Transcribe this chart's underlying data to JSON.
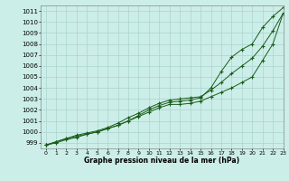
{
  "x": [
    0,
    1,
    2,
    3,
    4,
    5,
    6,
    7,
    8,
    9,
    10,
    11,
    12,
    13,
    14,
    15,
    16,
    17,
    18,
    19,
    20,
    21,
    22,
    23
  ],
  "series1": [
    998.8,
    999.1,
    999.4,
    999.6,
    999.8,
    1000.0,
    1000.3,
    1000.6,
    1001.0,
    1001.4,
    1001.8,
    1002.2,
    1002.5,
    1002.5,
    1002.6,
    1002.8,
    1003.2,
    1003.6,
    1004.0,
    1004.5,
    1005.0,
    1006.5,
    1008.0,
    1010.8
  ],
  "series2": [
    998.8,
    999.1,
    999.4,
    999.7,
    999.9,
    1000.1,
    1000.4,
    1000.8,
    1001.3,
    1001.7,
    1002.2,
    1002.6,
    1002.9,
    1003.0,
    1003.1,
    1003.2,
    1003.8,
    1004.5,
    1005.3,
    1006.0,
    1006.7,
    1007.8,
    1009.2,
    1010.8
  ],
  "series3": [
    998.8,
    999.0,
    999.3,
    999.5,
    999.8,
    1000.0,
    1000.3,
    1000.6,
    1001.0,
    1001.5,
    1002.0,
    1002.4,
    1002.7,
    1002.8,
    1002.9,
    1003.1,
    1004.0,
    1005.5,
    1006.8,
    1007.5,
    1008.0,
    1009.5,
    1010.5,
    1011.3
  ],
  "ylim": [
    998.5,
    1011.5
  ],
  "xlim": [
    -0.5,
    23
  ],
  "yticks": [
    999,
    1000,
    1001,
    1002,
    1003,
    1004,
    1005,
    1006,
    1007,
    1008,
    1009,
    1010,
    1011
  ],
  "xticks": [
    0,
    1,
    2,
    3,
    4,
    5,
    6,
    7,
    8,
    9,
    10,
    11,
    12,
    13,
    14,
    15,
    16,
    17,
    18,
    19,
    20,
    21,
    22,
    23
  ],
  "xlabel": "Graphe pression niveau de la mer (hPa)",
  "line_color": "#1a5c1a",
  "bg_color": "#cceee8",
  "grid_color": "#aad4ce",
  "text_color": "#000000"
}
